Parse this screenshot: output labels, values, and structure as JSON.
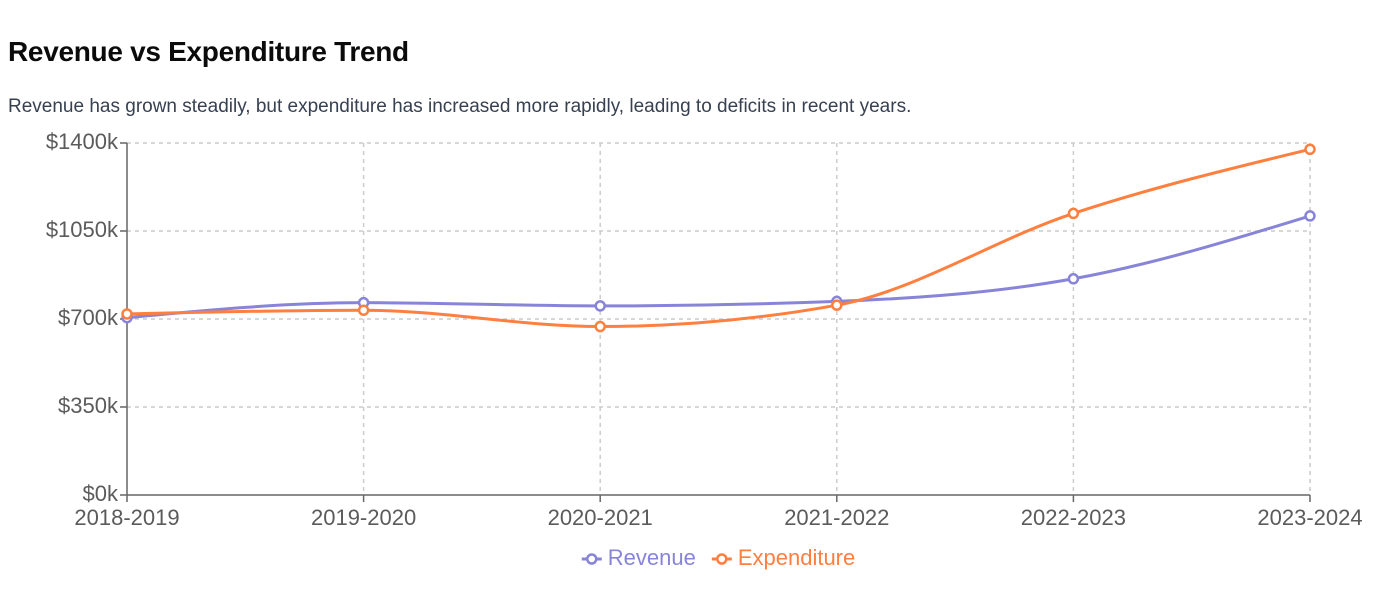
{
  "chart_data": {
    "type": "line",
    "title": "Revenue vs Expenditure Trend",
    "subtitle": "Revenue has grown steadily, but expenditure has increased more rapidly, leading to deficits in recent years.",
    "xlabel": "",
    "ylabel": "",
    "categories": [
      "2018-2019",
      "2019-2020",
      "2020-2021",
      "2021-2022",
      "2022-2023",
      "2023-2024"
    ],
    "y_ticks": [
      0,
      350,
      700,
      1050,
      1400
    ],
    "y_tick_labels": [
      "$0k",
      "$350k",
      "$700k",
      "$1050k",
      "$1400k"
    ],
    "ylim": [
      0,
      1400
    ],
    "grid": true,
    "legend_position": "bottom",
    "series": [
      {
        "name": "Revenue",
        "color": "#8884d8",
        "values": [
          705,
          765,
          752,
          770,
          860,
          1110
        ]
      },
      {
        "name": "Expenditure",
        "color": "#ff7f3f",
        "values": [
          720,
          735,
          670,
          755,
          1120,
          1375
        ]
      }
    ]
  }
}
